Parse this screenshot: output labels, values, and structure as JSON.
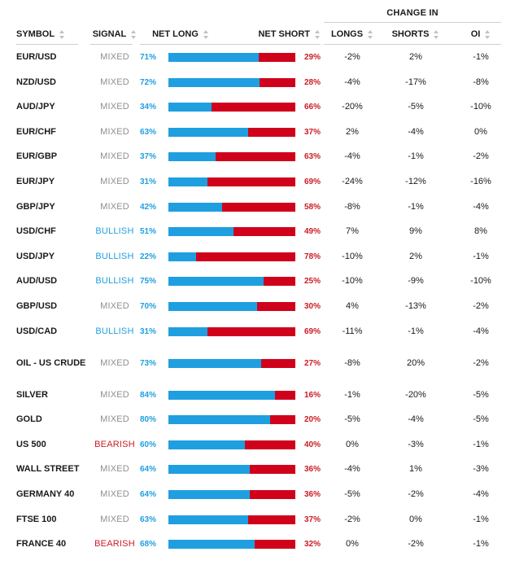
{
  "header": {
    "change_in": "CHANGE IN",
    "columns": {
      "symbol": "SYMBOL",
      "signal": "SIGNAL",
      "net_long": "NET LONG",
      "net_short": "NET SHORT",
      "longs": "LONGS",
      "shorts": "SHORTS",
      "oi": "OI"
    }
  },
  "colors": {
    "long": "#1f9fe0",
    "short": "#d0021b",
    "mixed": "#8f8f8f",
    "bullish": "#1f9fe0",
    "bearish": "#cc1b25"
  },
  "rows": [
    {
      "symbol": "EUR/USD",
      "signal": "MIXED",
      "net_long": "71%",
      "net_long_value": 71,
      "net_short": "29%",
      "longs": "-2%",
      "shorts": "2%",
      "oi": "-1%"
    },
    {
      "symbol": "NZD/USD",
      "signal": "MIXED",
      "net_long": "72%",
      "net_long_value": 72,
      "net_short": "28%",
      "longs": "-4%",
      "shorts": "-17%",
      "oi": "-8%"
    },
    {
      "symbol": "AUD/JPY",
      "signal": "MIXED",
      "net_long": "34%",
      "net_long_value": 34,
      "net_short": "66%",
      "longs": "-20%",
      "shorts": "-5%",
      "oi": "-10%"
    },
    {
      "symbol": "EUR/CHF",
      "signal": "MIXED",
      "net_long": "63%",
      "net_long_value": 63,
      "net_short": "37%",
      "longs": "2%",
      "shorts": "-4%",
      "oi": "0%"
    },
    {
      "symbol": "EUR/GBP",
      "signal": "MIXED",
      "net_long": "37%",
      "net_long_value": 37,
      "net_short": "63%",
      "longs": "-4%",
      "shorts": "-1%",
      "oi": "-2%"
    },
    {
      "symbol": "EUR/JPY",
      "signal": "MIXED",
      "net_long": "31%",
      "net_long_value": 31,
      "net_short": "69%",
      "longs": "-24%",
      "shorts": "-12%",
      "oi": "-16%"
    },
    {
      "symbol": "GBP/JPY",
      "signal": "MIXED",
      "net_long": "42%",
      "net_long_value": 42,
      "net_short": "58%",
      "longs": "-8%",
      "shorts": "-1%",
      "oi": "-4%"
    },
    {
      "symbol": "USD/CHF",
      "signal": "BULLISH",
      "net_long": "51%",
      "net_long_value": 51,
      "net_short": "49%",
      "longs": "7%",
      "shorts": "9%",
      "oi": "8%"
    },
    {
      "symbol": "USD/JPY",
      "signal": "BULLISH",
      "net_long": "22%",
      "net_long_value": 22,
      "net_short": "78%",
      "longs": "-10%",
      "shorts": "2%",
      "oi": "-1%"
    },
    {
      "symbol": "AUD/USD",
      "signal": "BULLISH",
      "net_long": "75%",
      "net_long_value": 75,
      "net_short": "25%",
      "longs": "-10%",
      "shorts": "-9%",
      "oi": "-10%"
    },
    {
      "symbol": "GBP/USD",
      "signal": "MIXED",
      "net_long": "70%",
      "net_long_value": 70,
      "net_short": "30%",
      "longs": "4%",
      "shorts": "-13%",
      "oi": "-2%"
    },
    {
      "symbol": "USD/CAD",
      "signal": "BULLISH",
      "net_long": "31%",
      "net_long_value": 31,
      "net_short": "69%",
      "longs": "-11%",
      "shorts": "-1%",
      "oi": "-4%"
    },
    {
      "symbol": "OIL - US CRUDE",
      "signal": "MIXED",
      "net_long": "73%",
      "net_long_value": 73,
      "net_short": "27%",
      "longs": "-8%",
      "shorts": "20%",
      "oi": "-2%"
    },
    {
      "symbol": "SILVER",
      "signal": "MIXED",
      "net_long": "84%",
      "net_long_value": 84,
      "net_short": "16%",
      "longs": "-1%",
      "shorts": "-20%",
      "oi": "-5%"
    },
    {
      "symbol": "GOLD",
      "signal": "MIXED",
      "net_long": "80%",
      "net_long_value": 80,
      "net_short": "20%",
      "longs": "-5%",
      "shorts": "-4%",
      "oi": "-5%"
    },
    {
      "symbol": "US 500",
      "signal": "BEARISH",
      "net_long": "60%",
      "net_long_value": 60,
      "net_short": "40%",
      "longs": "0%",
      "shorts": "-3%",
      "oi": "-1%"
    },
    {
      "symbol": "WALL STREET",
      "signal": "MIXED",
      "net_long": "64%",
      "net_long_value": 64,
      "net_short": "36%",
      "longs": "-4%",
      "shorts": "1%",
      "oi": "-3%"
    },
    {
      "symbol": "GERMANY 40",
      "signal": "MIXED",
      "net_long": "64%",
      "net_long_value": 64,
      "net_short": "36%",
      "longs": "-5%",
      "shorts": "-2%",
      "oi": "-4%"
    },
    {
      "symbol": "FTSE 100",
      "signal": "MIXED",
      "net_long": "63%",
      "net_long_value": 63,
      "net_short": "37%",
      "longs": "-2%",
      "shorts": "0%",
      "oi": "-1%"
    },
    {
      "symbol": "FRANCE 40",
      "signal": "BEARISH",
      "net_long": "68%",
      "net_long_value": 68,
      "net_short": "32%",
      "longs": "0%",
      "shorts": "-2%",
      "oi": "-1%"
    }
  ]
}
